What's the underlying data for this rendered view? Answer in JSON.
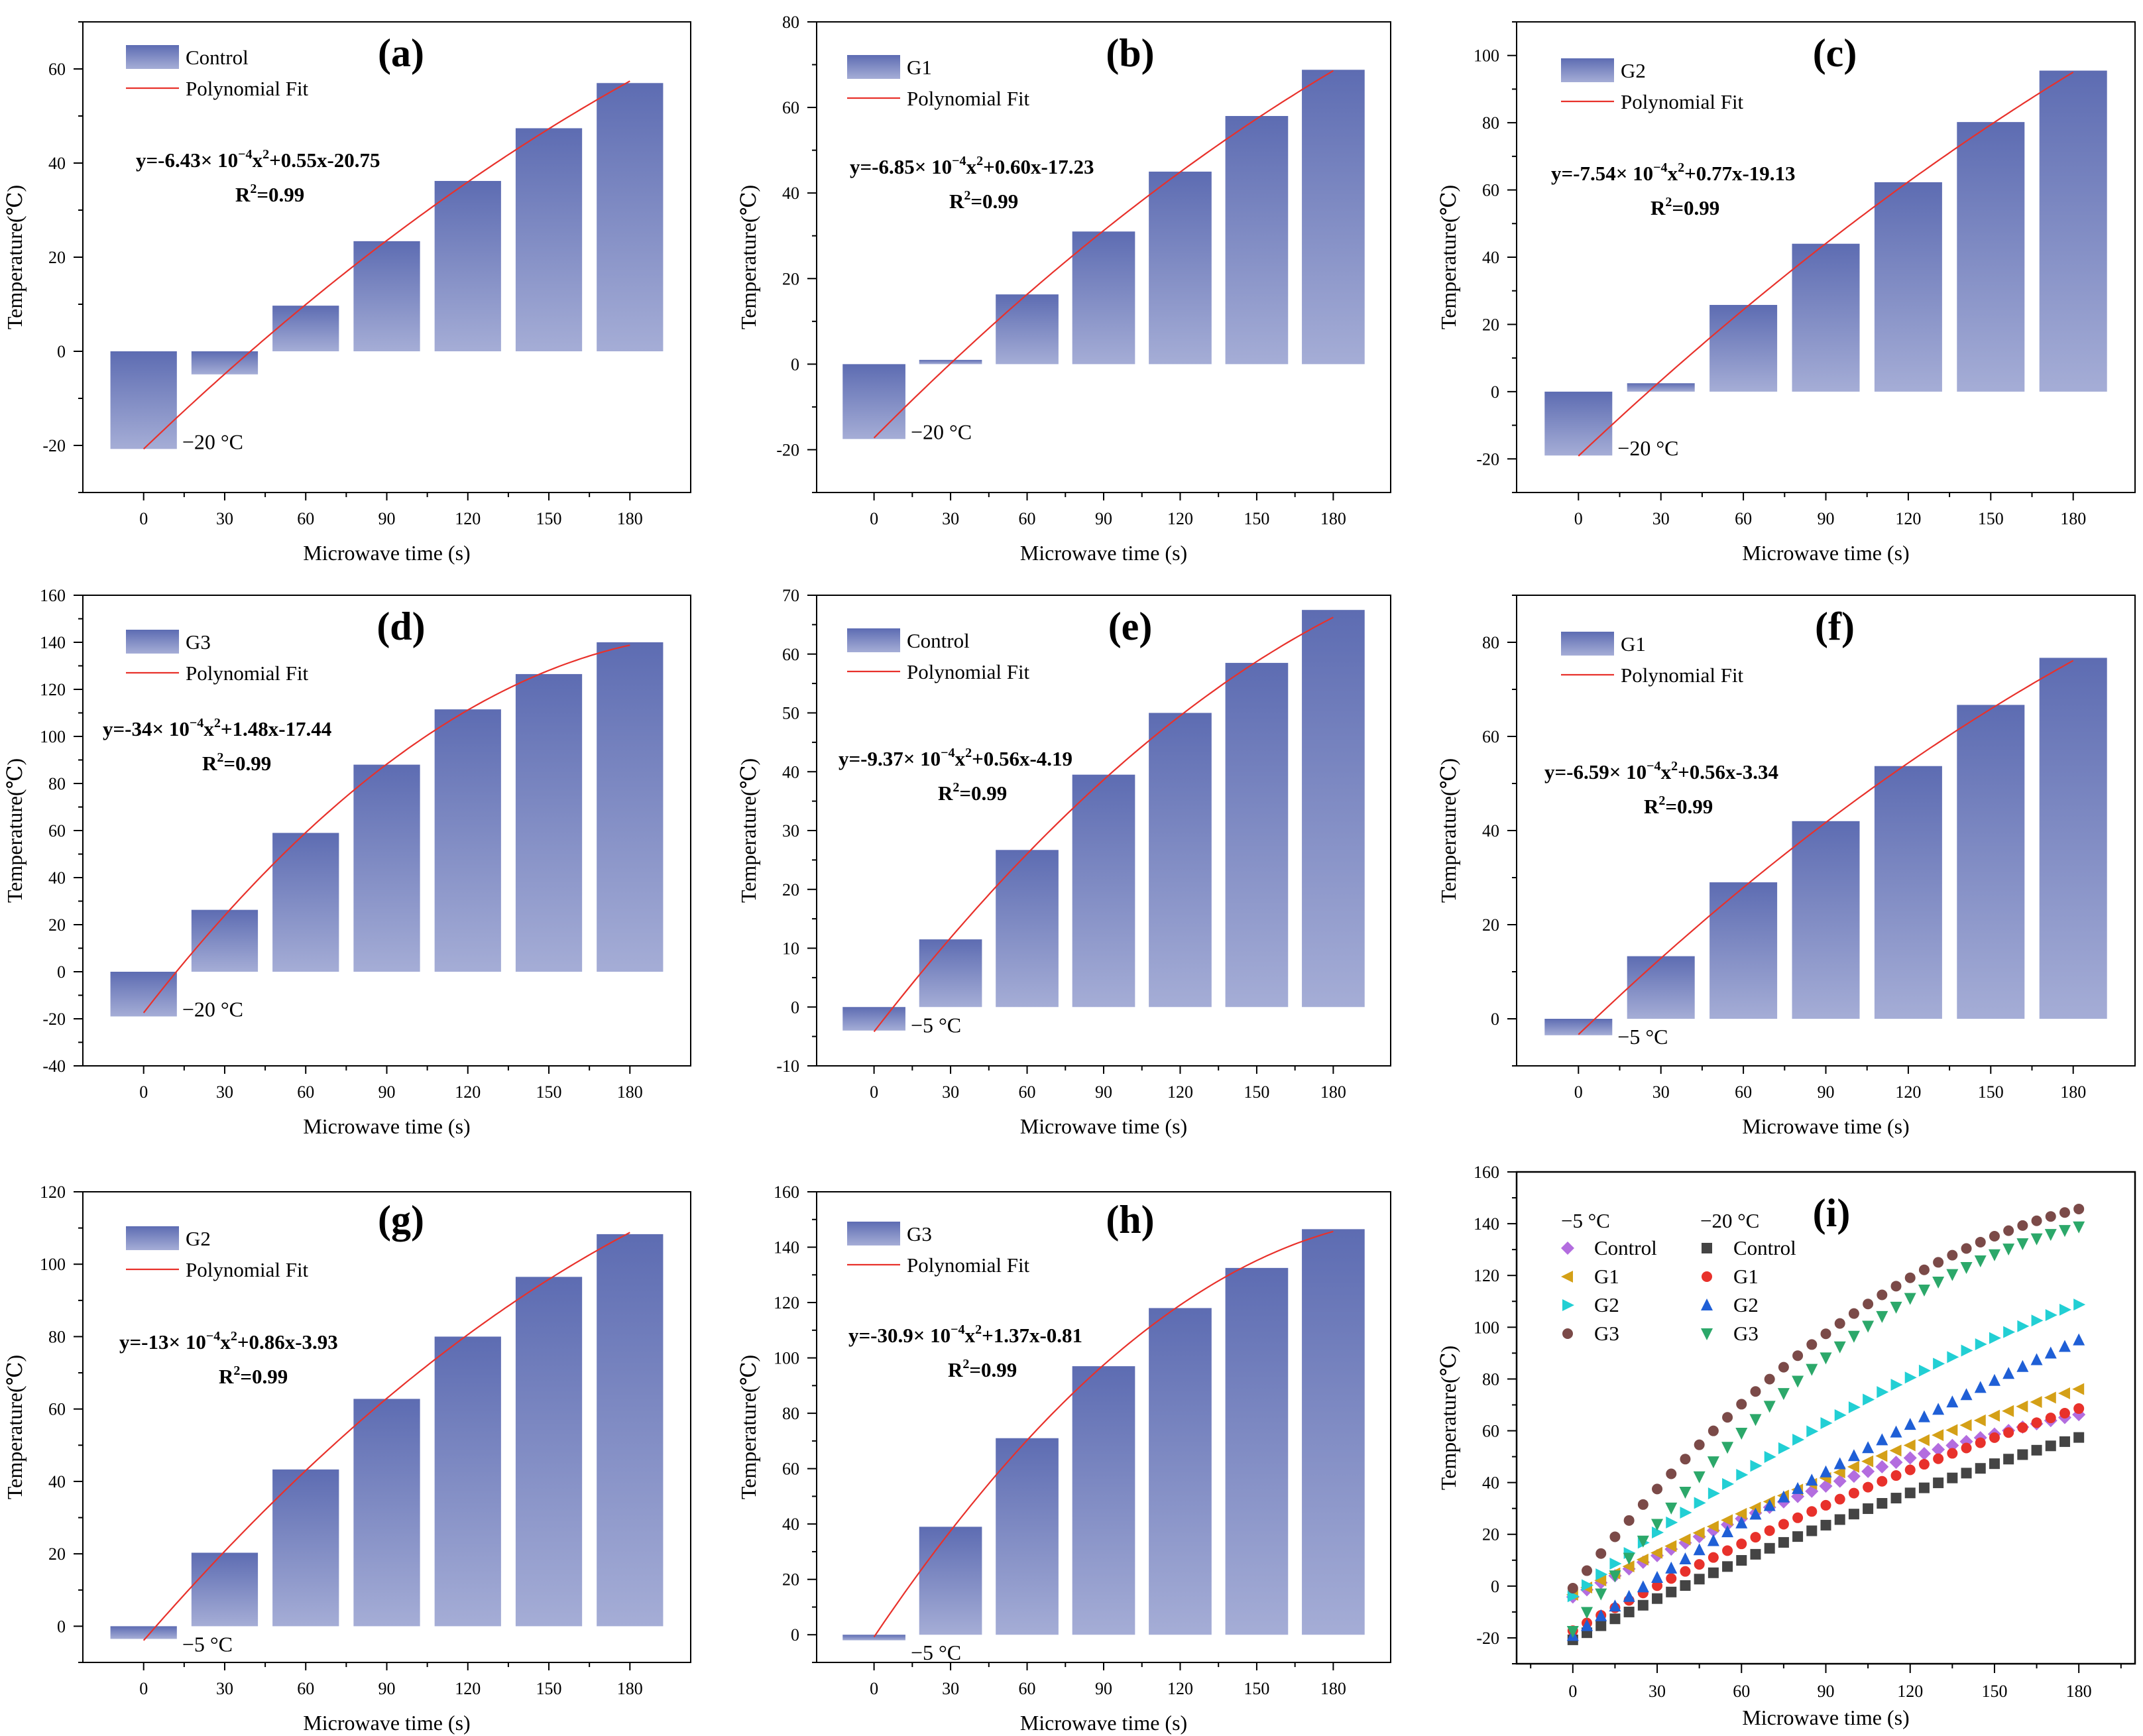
{
  "colors": {
    "bar_top": "#5d6cb2",
    "bar_bottom": "#a5add6",
    "fit_line": "#e8312b",
    "axis": "#000000",
    "i_m5": {
      "Control": "#b36ddf",
      "G1": "#d4a017",
      "G2": "#22cfd4",
      "G3": "#7b4a48"
    },
    "i_m20": {
      "Control": "#444444",
      "G1": "#e8312b",
      "G2": "#1f5fd6",
      "G3": "#2ca86a"
    }
  },
  "chart_data": [
    {
      "id": "a",
      "type": "bar",
      "panel_label": "(a)",
      "categories": [
        "0",
        "30",
        "60",
        "90",
        "120",
        "150",
        "180"
      ],
      "values": [
        -20.75,
        -4.9,
        9.7,
        23.4,
        36.2,
        47.4,
        57.0
      ],
      "ylim": [
        -30,
        70
      ],
      "yticks": [
        -20,
        0,
        20,
        40,
        60
      ],
      "xlabel": "Microwave time (s)",
      "ylabel": "Temperature(℃)",
      "legend": {
        "bar": "Control",
        "line": "Polynomial Fit"
      },
      "fit": {
        "a": -0.000643,
        "b": 0.55,
        "c": -20.75
      },
      "equation": {
        "main": "y=-6.43× 10",
        "exp": "−4",
        "tail": "x",
        "exp2": "2",
        "rest": "+0.55x-20.75"
      },
      "r2": {
        "r": "R",
        "exp": "2",
        "rest": "=0.99"
      },
      "annotation": "−20 °C"
    },
    {
      "id": "b",
      "type": "bar",
      "panel_label": "(b)",
      "categories": [
        "0",
        "30",
        "60",
        "90",
        "120",
        "150",
        "180"
      ],
      "values": [
        -17.5,
        1.0,
        16.3,
        31.0,
        45.0,
        58.0,
        68.8
      ],
      "ylim": [
        -30,
        80
      ],
      "yticks": [
        -20,
        0,
        20,
        40,
        60,
        80
      ],
      "xlabel": "Microwave time (s)",
      "ylabel": "Temperature(℃)",
      "legend": {
        "bar": "G1",
        "line": "Polynomial Fit"
      },
      "fit": {
        "a": -0.000685,
        "b": 0.6,
        "c": -17.23
      },
      "equation": {
        "main": "y=-6.85× 10",
        "exp": "−4",
        "tail": "x",
        "exp2": "2",
        "rest": "+0.60x-17.23"
      },
      "r2": {
        "r": "R",
        "exp": "2",
        "rest": "=0.99"
      },
      "annotation": "−20 °C"
    },
    {
      "id": "c",
      "type": "bar",
      "panel_label": "(c)",
      "categories": [
        "0",
        "30",
        "60",
        "90",
        "120",
        "150",
        "180"
      ],
      "values": [
        -19.0,
        2.5,
        25.8,
        44.0,
        62.3,
        80.2,
        95.5
      ],
      "ylim": [
        -30,
        110
      ],
      "yticks": [
        -20,
        0,
        20,
        40,
        60,
        80,
        100
      ],
      "xlabel": "Microwave time (s)",
      "ylabel": "Temperature(℃)",
      "legend": {
        "bar": "G2",
        "line": "Polynomial Fit"
      },
      "fit": {
        "a": -0.000754,
        "b": 0.77,
        "c": -19.13
      },
      "equation": {
        "main": "y=-7.54× 10",
        "exp": "−4",
        "tail": "x",
        "exp2": "2",
        "rest": "+0.77x-19.13"
      },
      "r2": {
        "r": "R",
        "exp": "2",
        "rest": "=0.99"
      },
      "annotation": "−20 °C"
    },
    {
      "id": "d",
      "type": "bar",
      "panel_label": "(d)",
      "categories": [
        "0",
        "30",
        "60",
        "90",
        "120",
        "150",
        "180"
      ],
      "values": [
        -19.0,
        26.3,
        59.0,
        88.0,
        111.5,
        126.5,
        140.0
      ],
      "ylim": [
        -40,
        160
      ],
      "yticks": [
        -40,
        -20,
        0,
        20,
        40,
        60,
        80,
        100,
        120,
        140,
        160
      ],
      "xlabel": "Microwave time (s)",
      "ylabel": "Temperature(℃)",
      "legend": {
        "bar": "G3",
        "line": "Polynomial Fit"
      },
      "fit": {
        "a": -0.0034,
        "b": 1.48,
        "c": -17.44
      },
      "equation": {
        "main": "y=-34× 10",
        "exp": "−4",
        "tail": "x",
        "exp2": "2",
        "rest": "+1.48x-17.44"
      },
      "r2": {
        "r": "R",
        "exp": "2",
        "rest": "=0.99"
      },
      "annotation": "−20 °C"
    },
    {
      "id": "e",
      "type": "bar",
      "panel_label": "(e)",
      "categories": [
        "0",
        "30",
        "60",
        "90",
        "120",
        "150",
        "180"
      ],
      "values": [
        -4.0,
        11.5,
        26.7,
        39.5,
        50.0,
        58.5,
        67.5
      ],
      "ylim": [
        -10,
        70
      ],
      "yticks": [
        -10,
        0,
        10,
        20,
        30,
        40,
        50,
        60,
        70
      ],
      "xlabel": "Microwave time (s)",
      "ylabel": "Temperature(℃)",
      "legend": {
        "bar": "Control",
        "line": "Polynomial Fit"
      },
      "fit": {
        "a": -0.000937,
        "b": 0.56,
        "c": -4.19
      },
      "equation": {
        "main": "y=-9.37× 10",
        "exp": "−4",
        "tail": "x",
        "exp2": "2",
        "rest": "+0.56x-4.19"
      },
      "r2": {
        "r": "R",
        "exp": "2",
        "rest": "=0.99"
      },
      "annotation": "−5 °C"
    },
    {
      "id": "f",
      "type": "bar",
      "panel_label": "(f)",
      "categories": [
        "0",
        "30",
        "60",
        "90",
        "120",
        "150",
        "180"
      ],
      "values": [
        -3.5,
        13.3,
        29.0,
        42.0,
        53.7,
        66.7,
        76.7
      ],
      "ylim": [
        -10,
        90
      ],
      "yticks": [
        0,
        20,
        40,
        60,
        80
      ],
      "xlabel": "Microwave time (s)",
      "ylabel": "Temperature(℃)",
      "legend": {
        "bar": "G1",
        "line": "Polynomial Fit"
      },
      "fit": {
        "a": -0.000659,
        "b": 0.56,
        "c": -3.34
      },
      "equation": {
        "main": "y=-6.59× 10",
        "exp": "−4",
        "tail": "x",
        "exp2": "2",
        "rest": "+0.56x-3.34"
      },
      "r2": {
        "r": "R",
        "exp": "2",
        "rest": "=0.99"
      },
      "annotation": "−5 °C"
    },
    {
      "id": "g",
      "type": "bar",
      "panel_label": "(g)",
      "categories": [
        "0",
        "30",
        "60",
        "90",
        "120",
        "150",
        "180"
      ],
      "values": [
        -3.5,
        20.3,
        43.3,
        62.8,
        80.0,
        96.5,
        108.3
      ],
      "ylim": [
        -10,
        120
      ],
      "yticks": [
        0,
        20,
        40,
        60,
        80,
        100,
        120
      ],
      "xlabel": "Microwave time (s)",
      "ylabel": "Temperature(℃)",
      "legend": {
        "bar": "G2",
        "line": "Polynomial Fit"
      },
      "fit": {
        "a": -0.0013,
        "b": 0.86,
        "c": -3.93
      },
      "equation": {
        "main": "y=-13× 10",
        "exp": "−4",
        "tail": "x",
        "exp2": "2",
        "rest": "+0.86x-3.93"
      },
      "r2": {
        "r": "R",
        "exp": "2",
        "rest": "=0.99"
      },
      "annotation": "−5 °C"
    },
    {
      "id": "h",
      "type": "bar",
      "panel_label": "(h)",
      "categories": [
        "0",
        "30",
        "60",
        "90",
        "120",
        "150",
        "180"
      ],
      "values": [
        -2.0,
        39.0,
        71.0,
        97.0,
        118.0,
        132.5,
        146.5
      ],
      "ylim": [
        -10,
        160
      ],
      "yticks": [
        0,
        20,
        40,
        60,
        80,
        100,
        120,
        140,
        160
      ],
      "xlabel": "Microwave time (s)",
      "ylabel": "Temperature(℃)",
      "legend": {
        "bar": "G3",
        "line": "Polynomial Fit"
      },
      "fit": {
        "a": -0.00309,
        "b": 1.37,
        "c": -0.81
      },
      "equation": {
        "main": "y=-30.9× 10",
        "exp": "−4",
        "tail": "x",
        "exp2": "2",
        "rest": "+1.37x-0.81"
      },
      "r2": {
        "r": "R",
        "exp": "2",
        "rest": "=0.99"
      },
      "annotation": "−5 °C"
    },
    {
      "id": "i",
      "type": "scatter",
      "panel_label": "(i)",
      "xlim": [
        -20,
        200
      ],
      "xticks": [
        0,
        30,
        60,
        90,
        120,
        150,
        180
      ],
      "ylim": [
        -30,
        160
      ],
      "yticks": [
        -20,
        0,
        20,
        40,
        60,
        80,
        100,
        120,
        140,
        160
      ],
      "xlabel": "Microwave time (s)",
      "ylabel": "Temperature(℃)",
      "x_range": [
        0,
        180
      ],
      "x_step": 5,
      "group_titles": {
        "m5": "−5 °C",
        "m20": "−20 °C"
      },
      "series": [
        {
          "group": "m5",
          "name": "Control",
          "marker": "diamond",
          "fit": {
            "a": -0.000937,
            "b": 0.56,
            "c": -4.19
          }
        },
        {
          "group": "m5",
          "name": "G1",
          "marker": "triangle-left",
          "fit": {
            "a": -0.000659,
            "b": 0.56,
            "c": -3.34
          }
        },
        {
          "group": "m5",
          "name": "G2",
          "marker": "triangle-right",
          "fit": {
            "a": -0.0013,
            "b": 0.86,
            "c": -3.93
          }
        },
        {
          "group": "m5",
          "name": "G3",
          "marker": "circle",
          "fit": {
            "a": -0.00309,
            "b": 1.37,
            "c": -0.81
          }
        },
        {
          "group": "m20",
          "name": "Control",
          "marker": "square",
          "fit": {
            "a": -0.000643,
            "b": 0.55,
            "c": -20.75
          }
        },
        {
          "group": "m20",
          "name": "G1",
          "marker": "circle",
          "fit": {
            "a": -0.000685,
            "b": 0.6,
            "c": -17.23
          }
        },
        {
          "group": "m20",
          "name": "G2",
          "marker": "triangle-up",
          "fit": {
            "a": -0.000754,
            "b": 0.77,
            "c": -19.13
          }
        },
        {
          "group": "m20",
          "name": "G3",
          "marker": "triangle-down",
          "fit": {
            "a": -0.0034,
            "b": 1.48,
            "c": -17.44
          }
        }
      ]
    }
  ]
}
